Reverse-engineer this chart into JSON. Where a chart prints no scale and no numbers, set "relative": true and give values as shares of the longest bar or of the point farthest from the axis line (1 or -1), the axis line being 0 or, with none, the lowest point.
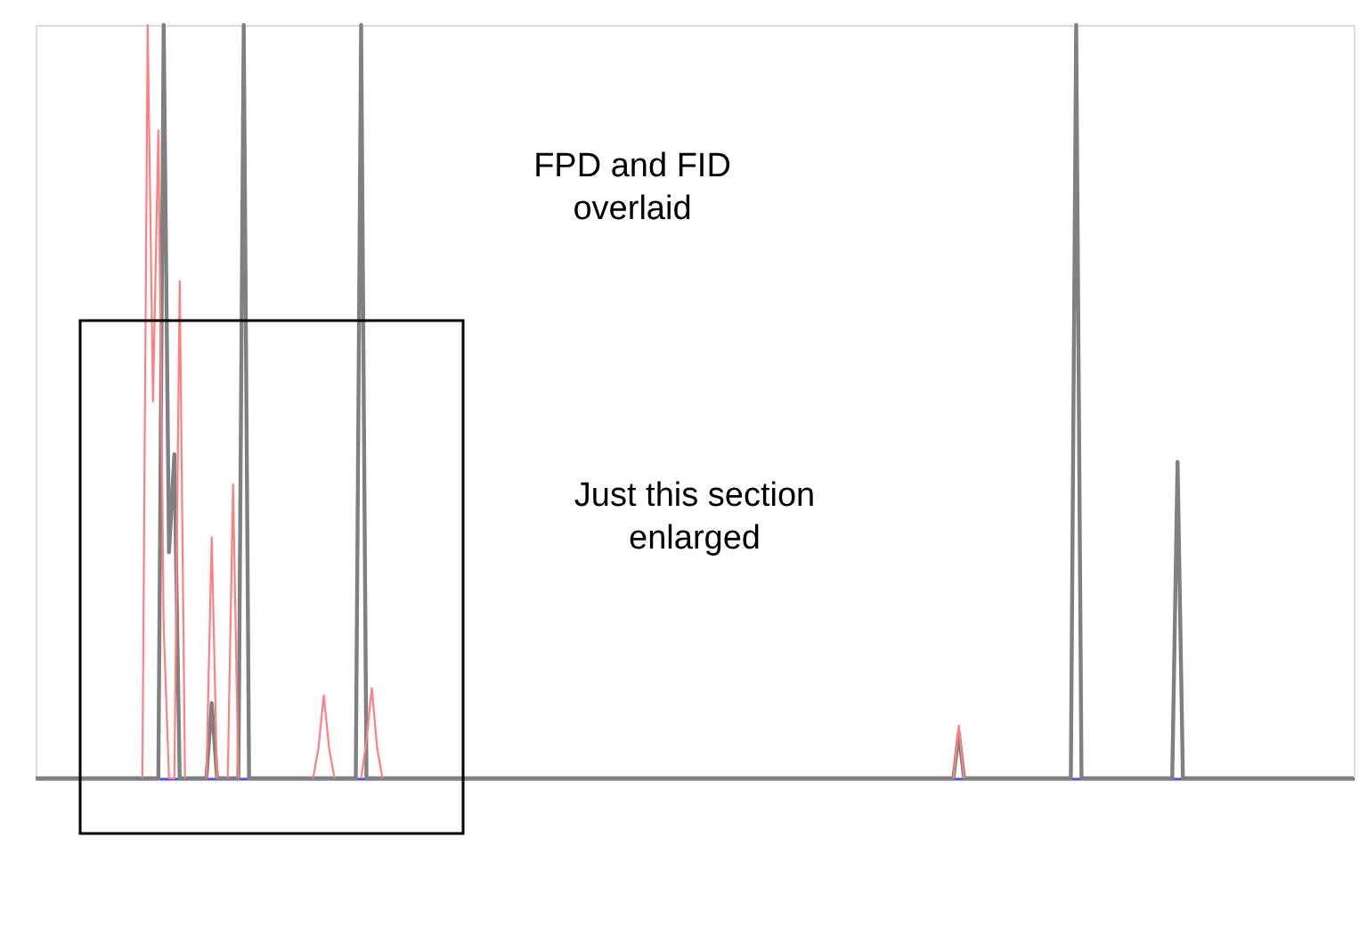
{
  "chart_data": {
    "type": "line",
    "relative": true,
    "tick_labels": false,
    "grid": false,
    "marker": "none",
    "line_style": "solid",
    "categories": [
      null,
      null,
      null,
      null,
      null,
      null,
      null,
      null,
      null,
      null,
      null,
      null,
      null,
      null,
      null,
      null,
      null,
      null,
      null,
      null,
      null,
      null,
      null,
      null,
      null,
      null,
      null,
      null,
      null,
      null,
      null,
      null,
      null,
      null,
      null,
      null,
      null,
      null,
      null,
      null,
      null,
      null,
      null,
      null,
      null,
      null,
      null,
      null,
      null,
      null,
      null,
      null,
      null,
      null,
      null,
      null,
      null,
      null,
      null,
      null,
      null,
      null,
      null,
      null,
      null,
      null,
      null,
      null,
      null,
      null,
      null,
      null,
      null,
      null,
      null,
      null,
      null,
      null,
      null,
      null,
      null,
      null,
      null,
      null,
      null,
      null,
      null,
      null,
      null,
      null,
      null,
      null,
      null,
      null,
      null,
      null,
      null,
      null,
      null,
      null,
      null,
      null,
      null,
      null,
      null,
      null,
      null,
      null,
      null,
      null,
      null,
      null,
      null,
      null,
      null,
      null,
      null,
      null,
      null,
      null,
      null,
      null,
      null,
      null,
      null,
      null,
      null,
      null,
      null,
      null,
      null,
      null,
      null,
      null,
      null,
      null,
      null,
      null,
      null,
      null,
      null,
      null,
      null,
      null,
      null,
      null,
      null,
      null,
      null,
      null,
      null,
      null,
      null,
      null,
      null,
      null,
      null,
      null,
      null,
      null,
      null,
      null,
      null,
      null,
      null,
      null,
      null,
      null,
      null,
      null,
      null,
      null,
      null,
      null,
      null,
      null,
      null,
      null,
      null,
      null,
      null,
      null,
      null,
      null,
      null,
      null,
      null,
      null,
      null,
      null,
      null,
      null,
      null,
      null,
      null,
      null,
      null,
      null,
      null,
      null,
      null,
      null,
      null,
      null,
      null,
      null,
      null,
      null,
      null,
      null,
      null,
      null,
      null,
      null,
      null,
      null,
      null,
      null,
      null,
      null,
      null,
      null,
      null,
      null,
      null,
      null,
      null,
      null,
      null,
      null,
      null,
      null,
      null,
      null,
      null,
      null,
      null,
      null,
      null,
      null,
      null,
      null,
      null,
      null,
      null,
      null,
      null,
      null
    ],
    "series": [
      {
        "color": "#808080",
        "values": [
          0,
          0,
          0,
          0,
          0,
          0,
          0,
          0,
          0,
          0,
          0,
          0,
          0,
          0,
          0,
          0,
          0,
          0,
          0,
          0,
          0,
          0,
          0,
          0,
          1,
          0.3,
          0.43,
          0,
          0,
          0,
          0,
          0,
          0,
          0.1,
          0,
          0,
          0,
          0,
          0,
          1,
          0,
          0,
          0,
          0,
          0,
          0,
          0,
          0,
          0,
          0,
          0,
          0,
          0,
          0,
          0,
          0,
          0,
          0,
          0,
          0,
          0,
          1,
          0,
          0,
          0,
          0,
          0,
          0,
          0,
          0,
          0,
          0,
          0,
          0,
          0,
          0,
          0,
          0,
          0,
          0,
          0,
          0,
          0,
          0,
          0,
          0,
          0,
          0,
          0,
          0,
          0,
          0,
          0,
          0,
          0,
          0,
          0,
          0,
          0,
          0,
          0,
          0,
          0,
          0,
          0,
          0,
          0,
          0,
          0,
          0,
          0,
          0,
          0,
          0,
          0,
          0,
          0,
          0,
          0,
          0,
          0,
          0,
          0,
          0,
          0,
          0,
          0,
          0,
          0,
          0,
          0,
          0,
          0,
          0,
          0,
          0,
          0,
          0,
          0,
          0,
          0,
          0,
          0,
          0,
          0,
          0,
          0,
          0,
          0,
          0,
          0,
          0,
          0,
          0,
          0,
          0,
          0,
          0,
          0,
          0,
          0,
          0,
          0,
          0,
          0,
          0,
          0,
          0,
          0,
          0,
          0,
          0,
          0,
          0.06,
          0,
          0,
          0,
          0,
          0,
          0,
          0,
          0,
          0,
          0,
          0,
          0,
          0,
          0,
          0,
          0,
          0,
          0,
          0,
          0,
          0,
          1,
          0,
          0,
          0,
          0,
          0,
          0,
          0,
          0,
          0,
          0,
          0,
          0,
          0,
          0,
          0,
          0,
          0,
          0,
          0.42,
          0,
          0,
          0,
          0,
          0,
          0,
          0,
          0,
          0,
          0,
          0,
          0,
          0,
          0,
          0,
          0,
          0,
          0,
          0,
          0,
          0,
          0,
          0,
          0,
          0,
          0,
          0,
          0,
          0,
          0,
          0,
          0,
          0
        ]
      },
      {
        "color": "#ff8080",
        "values": [
          null,
          null,
          null,
          null,
          null,
          null,
          null,
          null,
          null,
          null,
          null,
          null,
          null,
          null,
          null,
          null,
          null,
          null,
          null,
          null,
          0,
          1,
          0.5,
          0.86,
          0.2,
          0,
          0,
          0.66,
          0,
          null,
          null,
          null,
          0,
          0.32,
          0,
          null,
          0,
          0.39,
          0,
          null,
          null,
          null,
          null,
          null,
          null,
          null,
          null,
          null,
          null,
          null,
          null,
          null,
          0,
          0.04,
          0.11,
          0.04,
          0,
          null,
          null,
          null,
          null,
          0,
          0.05,
          0.12,
          0.04,
          0,
          null,
          null,
          null,
          null,
          null,
          null,
          null,
          null,
          null,
          null,
          null,
          null,
          null,
          null,
          null,
          null,
          null,
          null,
          null,
          null,
          null,
          null,
          null,
          null,
          null,
          null,
          null,
          null,
          null,
          null,
          null,
          null,
          null,
          null,
          null,
          null,
          null,
          null,
          null,
          null,
          null,
          null,
          null,
          null,
          null,
          null,
          null,
          null,
          null,
          null,
          null,
          null,
          null,
          null,
          null,
          null,
          null,
          null,
          null,
          null,
          null,
          null,
          null,
          null,
          null,
          null,
          null,
          null,
          null,
          null,
          null,
          null,
          null,
          null,
          null,
          null,
          null,
          null,
          null,
          null,
          null,
          null,
          null,
          null,
          null,
          null,
          null,
          null,
          null,
          null,
          null,
          null,
          null,
          null,
          null,
          null,
          null,
          null,
          null,
          null,
          null,
          null,
          null,
          null,
          null,
          null,
          0,
          0.07,
          0,
          null,
          null,
          null,
          null,
          null,
          null,
          null,
          null,
          null,
          null,
          null,
          null,
          null,
          null,
          null,
          null,
          null,
          null,
          null,
          null,
          null,
          null,
          null,
          null,
          null,
          null,
          null,
          null,
          null,
          null,
          null,
          null,
          null,
          null,
          null,
          null,
          null,
          null,
          null,
          null,
          null,
          null,
          null,
          null,
          null,
          null,
          null,
          null,
          null,
          null,
          null,
          null,
          null,
          null,
          null,
          null,
          null,
          null,
          null,
          null,
          null,
          null,
          null,
          null,
          null,
          null,
          null,
          null,
          null,
          null,
          null,
          null,
          null
        ]
      }
    ],
    "annotations": [
      "FPD and FID\noverlaid",
      "Just this section\nenlarged"
    ]
  }
}
